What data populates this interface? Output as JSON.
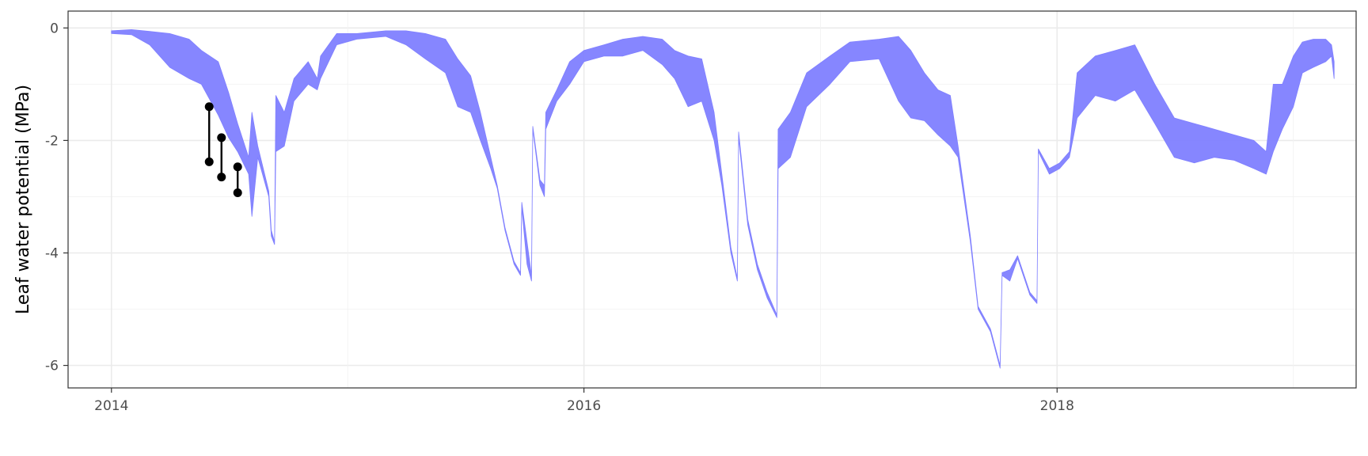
{
  "chart_data": {
    "type": "line",
    "title": "",
    "xlabel": "",
    "ylabel": "Leaf water potential (MPa)",
    "xlim": [
      "2013-10-26",
      "2019-04-08"
    ],
    "ylim": [
      -6.4,
      0.3
    ],
    "x_ticks": [
      {
        "value": "2014-01-01",
        "label": "2014"
      },
      {
        "value": "2016-01-01",
        "label": "2016"
      },
      {
        "value": "2018-01-01",
        "label": "2018"
      }
    ],
    "y_ticks": [
      {
        "value": 0,
        "label": "0"
      },
      {
        "value": -2,
        "label": "-2"
      },
      {
        "value": -4,
        "label": "-4"
      },
      {
        "value": -6,
        "label": "-6"
      }
    ],
    "grid": true,
    "legend": "none",
    "series": [
      {
        "kind": "band",
        "color": "#7f7fff",
        "points": [
          [
            "2014-01-01",
            -0.1,
            -0.05
          ],
          [
            "2014-02-01",
            -0.12,
            -0.03
          ],
          [
            "2014-03-01",
            -0.3,
            -0.06
          ],
          [
            "2014-04-01",
            -0.7,
            -0.1
          ],
          [
            "2014-05-01",
            -0.9,
            -0.2
          ],
          [
            "2014-05-20",
            -1.0,
            -0.4
          ],
          [
            "2014-06-15",
            -1.55,
            -0.6
          ],
          [
            "2014-07-01",
            -1.95,
            -1.15
          ],
          [
            "2014-07-15",
            -2.2,
            -1.7
          ],
          [
            "2014-08-01",
            -2.6,
            -2.3
          ],
          [
            "2014-08-06",
            -3.35,
            -1.5
          ],
          [
            "2014-08-15",
            -2.3,
            -2.1
          ],
          [
            "2014-09-01",
            -3.0,
            -2.9
          ],
          [
            "2014-09-05",
            -3.7,
            -3.6
          ],
          [
            "2014-09-10",
            -3.85,
            -3.8
          ],
          [
            "2014-09-12",
            -2.2,
            -1.2
          ],
          [
            "2014-09-25",
            -2.1,
            -1.5
          ],
          [
            "2014-10-10",
            -1.3,
            -0.9
          ],
          [
            "2014-11-01",
            -1.0,
            -0.6
          ],
          [
            "2014-11-15",
            -1.1,
            -0.9
          ],
          [
            "2014-11-20",
            -0.9,
            -0.5
          ],
          [
            "2014-12-15",
            -0.3,
            -0.1
          ],
          [
            "2015-01-15",
            -0.2,
            -0.1
          ],
          [
            "2015-03-01",
            -0.15,
            -0.05
          ],
          [
            "2015-04-01",
            -0.3,
            -0.05
          ],
          [
            "2015-05-01",
            -0.55,
            -0.1
          ],
          [
            "2015-06-01",
            -0.8,
            -0.2
          ],
          [
            "2015-06-20",
            -1.4,
            -0.55
          ],
          [
            "2015-07-10",
            -1.5,
            -0.85
          ],
          [
            "2015-07-25",
            -2.0,
            -1.5
          ],
          [
            "2015-08-10",
            -2.5,
            -2.3
          ],
          [
            "2015-08-20",
            -2.85,
            -2.8
          ],
          [
            "2015-09-01",
            -3.6,
            -3.55
          ],
          [
            "2015-09-15",
            -4.2,
            -4.15
          ],
          [
            "2015-09-25",
            -4.4,
            -4.35
          ],
          [
            "2015-09-27",
            -3.2,
            -3.1
          ],
          [
            "2015-10-05",
            -4.2,
            -3.8
          ],
          [
            "2015-10-12",
            -4.5,
            -4.4
          ],
          [
            "2015-10-14",
            -1.8,
            -1.75
          ],
          [
            "2015-10-25",
            -2.8,
            -2.7
          ],
          [
            "2015-11-01",
            -3.0,
            -2.8
          ],
          [
            "2015-11-03",
            -1.8,
            -1.5
          ],
          [
            "2015-11-20",
            -1.3,
            -1.1
          ],
          [
            "2015-12-10",
            -1.0,
            -0.6
          ],
          [
            "2016-01-01",
            -0.6,
            -0.4
          ],
          [
            "2016-02-01",
            -0.5,
            -0.3
          ],
          [
            "2016-03-01",
            -0.5,
            -0.2
          ],
          [
            "2016-04-01",
            -0.4,
            -0.15
          ],
          [
            "2016-05-01",
            -0.65,
            -0.2
          ],
          [
            "2016-05-20",
            -0.9,
            -0.4
          ],
          [
            "2016-06-10",
            -1.4,
            -0.5
          ],
          [
            "2016-07-01",
            -1.3,
            -0.55
          ],
          [
            "2016-07-20",
            -2.0,
            -1.5
          ],
          [
            "2016-08-01",
            -2.8,
            -2.6
          ],
          [
            "2016-08-15",
            -4.0,
            -3.9
          ],
          [
            "2016-08-25",
            -4.5,
            -4.45
          ],
          [
            "2016-08-27",
            -1.95,
            -1.85
          ],
          [
            "2016-09-10",
            -3.5,
            -3.4
          ],
          [
            "2016-09-25",
            -4.3,
            -4.2
          ],
          [
            "2016-10-10",
            -4.8,
            -4.7
          ],
          [
            "2016-10-25",
            -5.15,
            -5.1
          ],
          [
            "2016-10-27",
            -2.5,
            -1.8
          ],
          [
            "2016-11-15",
            -2.3,
            -1.5
          ],
          [
            "2016-12-10",
            -1.4,
            -0.8
          ],
          [
            "2017-01-15",
            -1.0,
            -0.5
          ],
          [
            "2017-02-15",
            -0.6,
            -0.25
          ],
          [
            "2017-04-01",
            -0.55,
            -0.2
          ],
          [
            "2017-05-01",
            -1.3,
            -0.15
          ],
          [
            "2017-05-20",
            -1.6,
            -0.4
          ],
          [
            "2017-06-10",
            -1.65,
            -0.8
          ],
          [
            "2017-07-01",
            -1.9,
            -1.1
          ],
          [
            "2017-07-20",
            -2.1,
            -1.2
          ],
          [
            "2017-08-01",
            -2.3,
            -2.1
          ],
          [
            "2017-08-20",
            -3.8,
            -3.7
          ],
          [
            "2017-09-01",
            -5.0,
            -4.95
          ],
          [
            "2017-09-20",
            -5.4,
            -5.35
          ],
          [
            "2017-10-05",
            -6.05,
            -6.0
          ],
          [
            "2017-10-08",
            -4.4,
            -4.35
          ],
          [
            "2017-10-20",
            -4.5,
            -4.3
          ],
          [
            "2017-11-01",
            -4.1,
            -4.05
          ],
          [
            "2017-11-20",
            -4.75,
            -4.7
          ],
          [
            "2017-12-01",
            -4.9,
            -4.85
          ],
          [
            "2017-12-03",
            -2.2,
            -2.15
          ],
          [
            "2017-12-20",
            -2.6,
            -2.5
          ],
          [
            "2018-01-05",
            -2.5,
            -2.4
          ],
          [
            "2018-01-20",
            -2.3,
            -2.2
          ],
          [
            "2018-02-01",
            -1.6,
            -0.8
          ],
          [
            "2018-03-01",
            -1.2,
            -0.5
          ],
          [
            "2018-04-01",
            -1.3,
            -0.4
          ],
          [
            "2018-05-01",
            -1.1,
            -0.3
          ],
          [
            "2018-06-01",
            -1.7,
            -1.0
          ],
          [
            "2018-07-01",
            -2.3,
            -1.6
          ],
          [
            "2018-08-01",
            -2.4,
            -1.7
          ],
          [
            "2018-09-01",
            -2.3,
            -1.8
          ],
          [
            "2018-10-01",
            -2.35,
            -1.9
          ],
          [
            "2018-11-01",
            -2.5,
            -2.0
          ],
          [
            "2018-11-20",
            -2.6,
            -2.2
          ],
          [
            "2018-12-01",
            -2.2,
            -1.0
          ],
          [
            "2018-12-15",
            -1.8,
            -1.0
          ],
          [
            "2019-01-01",
            -1.4,
            -0.5
          ],
          [
            "2019-01-15",
            -0.8,
            -0.25
          ],
          [
            "2019-02-01",
            -0.7,
            -0.2
          ],
          [
            "2019-02-20",
            -0.6,
            -0.2
          ],
          [
            "2019-03-01",
            -0.5,
            -0.3
          ],
          [
            "2019-03-05",
            -0.9,
            -0.6
          ]
        ]
      },
      {
        "kind": "observed-range",
        "color": "#000000",
        "points": [
          [
            "2014-06-01",
            -2.38,
            -1.4
          ],
          [
            "2014-06-20",
            -2.65,
            -1.95
          ],
          [
            "2014-07-15",
            -2.93,
            -2.47
          ]
        ]
      }
    ]
  }
}
